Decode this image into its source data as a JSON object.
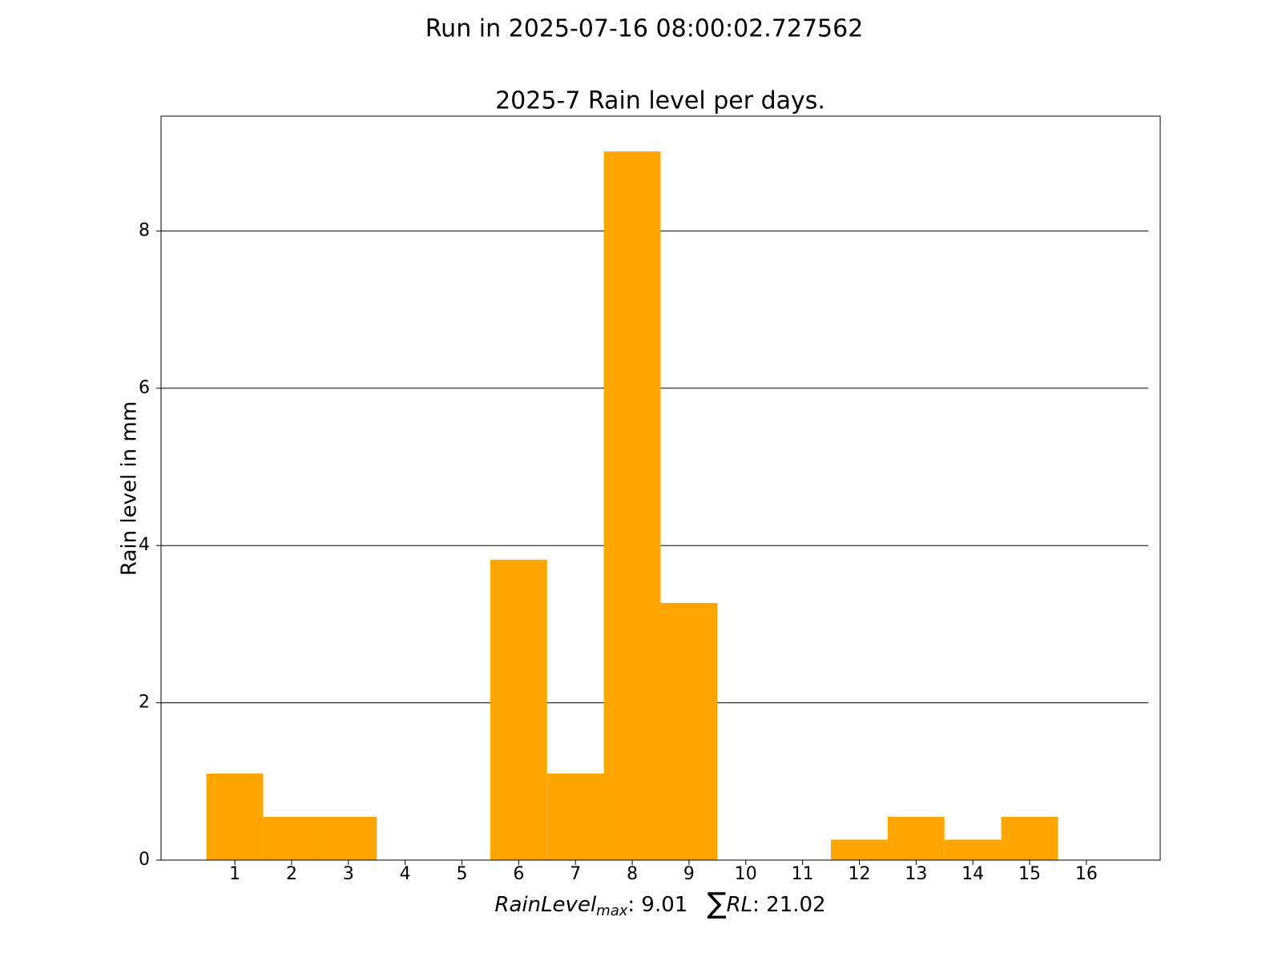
{
  "chart_data": {
    "type": "bar",
    "suptitle": "Run in 2025-07-16 08:00:02.727562",
    "title": "2025-7 Rain level per days.",
    "ylabel": "Rain level in mm",
    "xlabel_parts": [
      "RainLevel",
      "max",
      ": 9.01",
      "∑",
      "RL",
      ": 21.02"
    ],
    "x": [
      1,
      2,
      3,
      4,
      5,
      6,
      7,
      8,
      9,
      10,
      11,
      12,
      13,
      14,
      15,
      16
    ],
    "values": [
      1.1,
      0.55,
      0.55,
      0,
      0,
      3.82,
      1.1,
      9.01,
      3.27,
      0,
      0,
      0.26,
      0.55,
      0.26,
      0.55,
      0
    ],
    "color": "#ffa500",
    "xlim": [
      -0.3,
      17.3
    ],
    "xticks": [
      1,
      2,
      3,
      4,
      5,
      6,
      7,
      8,
      9,
      10,
      11,
      12,
      13,
      14,
      15,
      16
    ],
    "ylim": [
      0,
      9.46
    ],
    "yticks": [
      0,
      2,
      4,
      6,
      8
    ],
    "grid": true
  }
}
